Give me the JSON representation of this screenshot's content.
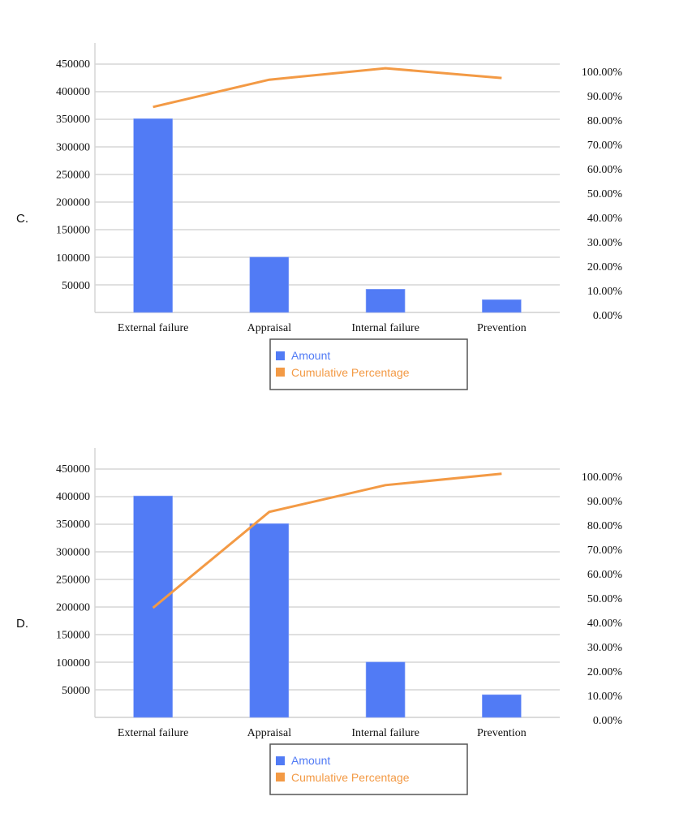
{
  "chart_data": [
    {
      "label": "C.",
      "type": "bar+line",
      "categories": [
        "External failure",
        "Appraisal",
        "Internal failure",
        "Prevention"
      ],
      "series": [
        {
          "name": "Amount",
          "type": "bar",
          "axis": "left",
          "color": "#517bf5",
          "values": [
            350000,
            100000,
            42000,
            23000
          ]
        },
        {
          "name": "Cumulative Percentage",
          "type": "line",
          "axis": "right",
          "color": "#f39a45",
          "values": [
            84.4,
            95.6,
            100.3,
            96.3
          ]
        }
      ],
      "left_axis": {
        "ylim": [
          0,
          450000
        ],
        "ticks": [
          "450000",
          "400000",
          "350000",
          "300000",
          "250000",
          "200000",
          "150000",
          "100000",
          "50000"
        ]
      },
      "right_axis": {
        "ylim": [
          0,
          100
        ],
        "ticks": [
          "100.00%",
          "90.00%",
          "80.00%",
          "70.00%",
          "60.00%",
          "50.00%",
          "40.00%",
          "30.00%",
          "20.00%",
          "10.00%",
          "0.00%"
        ]
      },
      "grid": true,
      "legend": "bottom"
    },
    {
      "label": "D.",
      "type": "bar+line",
      "categories": [
        "External failure",
        "Appraisal",
        "Internal failure",
        "Prevention"
      ],
      "series": [
        {
          "name": "Amount",
          "type": "bar",
          "axis": "left",
          "color": "#517bf5",
          "values": [
            400000,
            350000,
            100000,
            41000
          ]
        },
        {
          "name": "Cumulative Percentage",
          "type": "line",
          "axis": "right",
          "color": "#f39a45",
          "values": [
            45.0,
            84.4,
            95.4,
            100.1
          ]
        }
      ],
      "left_axis": {
        "ylim": [
          0,
          450000
        ],
        "ticks": [
          "450000",
          "400000",
          "350000",
          "300000",
          "250000",
          "200000",
          "150000",
          "100000",
          "50000"
        ]
      },
      "right_axis": {
        "ylim": [
          0,
          100
        ],
        "ticks": [
          "100.00%",
          "90.00%",
          "80.00%",
          "70.00%",
          "60.00%",
          "50.00%",
          "40.00%",
          "30.00%",
          "20.00%",
          "10.00%",
          "0.00%"
        ]
      },
      "grid": true,
      "legend": "bottom"
    }
  ]
}
